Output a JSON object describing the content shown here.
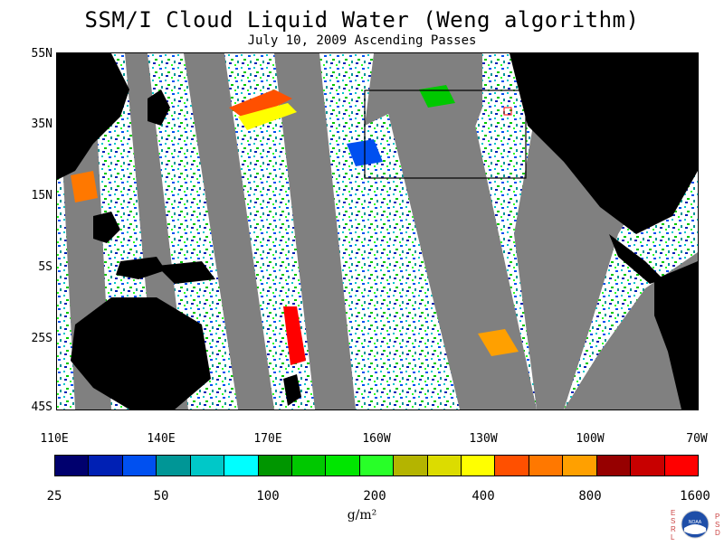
{
  "title": "SSM/I Cloud Liquid Water (Weng algorithm)",
  "subtitle": "July 10, 2009  Ascending Passes",
  "latitude_labels": [
    "55N",
    "35N",
    "15N",
    "5S",
    "25S",
    "45S"
  ],
  "longitude_labels": [
    "110E",
    "140E",
    "170E",
    "160W",
    "130W",
    "100W",
    "70W"
  ],
  "colorbar": {
    "colors": [
      "#00006e",
      "#0020b4",
      "#0050f0",
      "#009696",
      "#00c8c8",
      "#00ffff",
      "#009600",
      "#00c800",
      "#00e600",
      "#28ff28",
      "#b4b400",
      "#dcdc00",
      "#ffff00",
      "#ff5000",
      "#ff7800",
      "#ffa000",
      "#960000",
      "#c80000",
      "#ff0000"
    ],
    "tick_labels": [
      "25",
      "50",
      "100",
      "200",
      "400",
      "800",
      "1600"
    ],
    "units_label": "g/m²"
  },
  "map_colors": {
    "land": "#000000",
    "no_data": "#808080",
    "clear": "#ffffff"
  },
  "logo": {
    "left_letters": "ESRL",
    "right_letters": "PSD",
    "center_text": "NOAA"
  }
}
